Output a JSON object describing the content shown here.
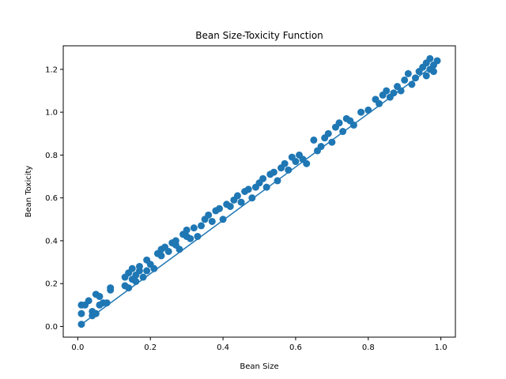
{
  "chart_data": {
    "type": "scatter",
    "title": "Bean Size-Toxicity Function",
    "xlabel": "Bean Size",
    "ylabel": "Bean Toxicity",
    "xlim": [
      -0.04,
      1.04
    ],
    "ylim": [
      -0.05,
      1.31
    ],
    "x_ticks": [
      {
        "value": 0.0,
        "label": "0.0"
      },
      {
        "value": 0.2,
        "label": "0.2"
      },
      {
        "value": 0.4,
        "label": "0.4"
      },
      {
        "value": 0.6,
        "label": "0.6"
      },
      {
        "value": 0.8,
        "label": "0.8"
      },
      {
        "value": 1.0,
        "label": "1.0"
      }
    ],
    "y_ticks": [
      {
        "value": 0.0,
        "label": "0.0"
      },
      {
        "value": 0.2,
        "label": "0.2"
      },
      {
        "value": 0.4,
        "label": "0.4"
      },
      {
        "value": 0.6,
        "label": "0.6"
      },
      {
        "value": 0.8,
        "label": "0.8"
      },
      {
        "value": 1.0,
        "label": "1.0"
      },
      {
        "value": 1.2,
        "label": "1.2"
      }
    ],
    "grid": false,
    "color": "#1f77b4",
    "fit_line": {
      "x": [
        0.01,
        0.99
      ],
      "y": [
        0.01,
        1.23
      ]
    },
    "points": [
      [
        0.01,
        0.01
      ],
      [
        0.01,
        0.06
      ],
      [
        0.01,
        0.1
      ],
      [
        0.02,
        0.1
      ],
      [
        0.03,
        0.12
      ],
      [
        0.04,
        0.05
      ],
      [
        0.04,
        0.07
      ],
      [
        0.05,
        0.15
      ],
      [
        0.05,
        0.06
      ],
      [
        0.06,
        0.1
      ],
      [
        0.06,
        0.14
      ],
      [
        0.07,
        0.11
      ],
      [
        0.08,
        0.11
      ],
      [
        0.09,
        0.17
      ],
      [
        0.09,
        0.18
      ],
      [
        0.13,
        0.19
      ],
      [
        0.13,
        0.23
      ],
      [
        0.14,
        0.25
      ],
      [
        0.14,
        0.18
      ],
      [
        0.15,
        0.27
      ],
      [
        0.15,
        0.22
      ],
      [
        0.16,
        0.24
      ],
      [
        0.16,
        0.21
      ],
      [
        0.17,
        0.28
      ],
      [
        0.17,
        0.26
      ],
      [
        0.18,
        0.23
      ],
      [
        0.19,
        0.31
      ],
      [
        0.19,
        0.26
      ],
      [
        0.2,
        0.29
      ],
      [
        0.21,
        0.27
      ],
      [
        0.22,
        0.34
      ],
      [
        0.23,
        0.33
      ],
      [
        0.23,
        0.36
      ],
      [
        0.24,
        0.37
      ],
      [
        0.25,
        0.35
      ],
      [
        0.26,
        0.39
      ],
      [
        0.27,
        0.38
      ],
      [
        0.27,
        0.4
      ],
      [
        0.28,
        0.36
      ],
      [
        0.29,
        0.43
      ],
      [
        0.3,
        0.42
      ],
      [
        0.3,
        0.45
      ],
      [
        0.31,
        0.41
      ],
      [
        0.32,
        0.46
      ],
      [
        0.33,
        0.42
      ],
      [
        0.34,
        0.47
      ],
      [
        0.35,
        0.5
      ],
      [
        0.36,
        0.52
      ],
      [
        0.37,
        0.49
      ],
      [
        0.38,
        0.54
      ],
      [
        0.39,
        0.55
      ],
      [
        0.4,
        0.5
      ],
      [
        0.41,
        0.57
      ],
      [
        0.42,
        0.56
      ],
      [
        0.43,
        0.59
      ],
      [
        0.44,
        0.61
      ],
      [
        0.45,
        0.58
      ],
      [
        0.46,
        0.63
      ],
      [
        0.47,
        0.64
      ],
      [
        0.48,
        0.6
      ],
      [
        0.49,
        0.65
      ],
      [
        0.5,
        0.67
      ],
      [
        0.51,
        0.69
      ],
      [
        0.52,
        0.65
      ],
      [
        0.53,
        0.71
      ],
      [
        0.54,
        0.72
      ],
      [
        0.55,
        0.68
      ],
      [
        0.56,
        0.74
      ],
      [
        0.57,
        0.76
      ],
      [
        0.58,
        0.73
      ],
      [
        0.59,
        0.79
      ],
      [
        0.6,
        0.77
      ],
      [
        0.61,
        0.8
      ],
      [
        0.62,
        0.78
      ],
      [
        0.63,
        0.76
      ],
      [
        0.65,
        0.87
      ],
      [
        0.66,
        0.82
      ],
      [
        0.67,
        0.84
      ],
      [
        0.68,
        0.88
      ],
      [
        0.69,
        0.9
      ],
      [
        0.7,
        0.86
      ],
      [
        0.71,
        0.93
      ],
      [
        0.72,
        0.95
      ],
      [
        0.73,
        0.91
      ],
      [
        0.74,
        0.97
      ],
      [
        0.75,
        0.96
      ],
      [
        0.76,
        0.94
      ],
      [
        0.78,
        1.0
      ],
      [
        0.8,
        1.01
      ],
      [
        0.82,
        1.06
      ],
      [
        0.83,
        1.04
      ],
      [
        0.84,
        1.08
      ],
      [
        0.85,
        1.1
      ],
      [
        0.86,
        1.07
      ],
      [
        0.87,
        1.09
      ],
      [
        0.88,
        1.12
      ],
      [
        0.89,
        1.1
      ],
      [
        0.9,
        1.15
      ],
      [
        0.91,
        1.18
      ],
      [
        0.92,
        1.13
      ],
      [
        0.93,
        1.16
      ],
      [
        0.94,
        1.19
      ],
      [
        0.95,
        1.21
      ],
      [
        0.96,
        1.17
      ],
      [
        0.96,
        1.23
      ],
      [
        0.97,
        1.25
      ],
      [
        0.97,
        1.2
      ],
      [
        0.98,
        1.22
      ],
      [
        0.98,
        1.19
      ],
      [
        0.99,
        1.24
      ]
    ]
  }
}
